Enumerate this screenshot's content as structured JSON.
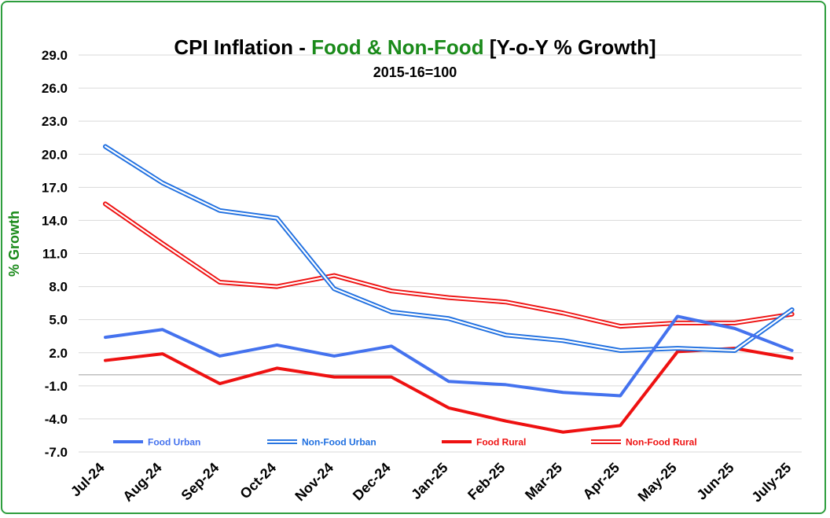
{
  "chart_data": {
    "type": "line",
    "title_parts": [
      {
        "text": "CPI Inflation - ",
        "color": "#000000"
      },
      {
        "text": "Food & Non-Food",
        "color": "#1a8a1a"
      },
      {
        "text": " [Y-o-Y % Growth]",
        "color": "#000000"
      }
    ],
    "subtitle": "2015-16=100",
    "ylabel": "% Growth",
    "ylabel_color": "#1a8a1a",
    "categories": [
      "Jul-24",
      "Aug-24",
      "Sep-24",
      "Oct-24",
      "Nov-24",
      "Dec-24",
      "Jan-25",
      "Feb-25",
      "Mar-25",
      "Apr-25",
      "May-25",
      "Jun-25",
      "July-25"
    ],
    "ylim": [
      -7.0,
      29.0
    ],
    "yticks": [
      "29.0",
      "26.0",
      "23.0",
      "20.0",
      "17.0",
      "14.0",
      "11.0",
      "8.0",
      "5.0",
      "2.0",
      "-1.0",
      "-4.0",
      "-7.0"
    ],
    "zero_line": true,
    "grid": true,
    "legend_position": "bottom",
    "series": [
      {
        "name": "Food Urban",
        "style": "solid",
        "color": "#4472ee",
        "values": [
          3.4,
          4.1,
          1.7,
          2.7,
          1.7,
          2.6,
          -0.6,
          -0.9,
          -1.6,
          -1.9,
          5.3,
          4.2,
          2.2
        ]
      },
      {
        "name": "Non-Food Urban",
        "style": "double",
        "color": "#1f6fe0",
        "values": [
          20.7,
          17.4,
          14.9,
          14.2,
          7.8,
          5.7,
          5.1,
          3.6,
          3.1,
          2.2,
          2.4,
          2.2,
          5.9
        ]
      },
      {
        "name": "Food Rural",
        "style": "solid",
        "color": "#ee1111",
        "values": [
          1.3,
          1.9,
          -0.8,
          0.6,
          -0.2,
          -0.2,
          -3.0,
          -4.2,
          -5.2,
          -4.6,
          2.1,
          2.4,
          1.5
        ]
      },
      {
        "name": "Non-Food Rural",
        "style": "double",
        "color": "#ee1111",
        "values": [
          15.5,
          11.9,
          8.4,
          8.0,
          9.0,
          7.6,
          7.0,
          6.6,
          5.6,
          4.4,
          4.7,
          4.7,
          5.5
        ]
      }
    ]
  }
}
